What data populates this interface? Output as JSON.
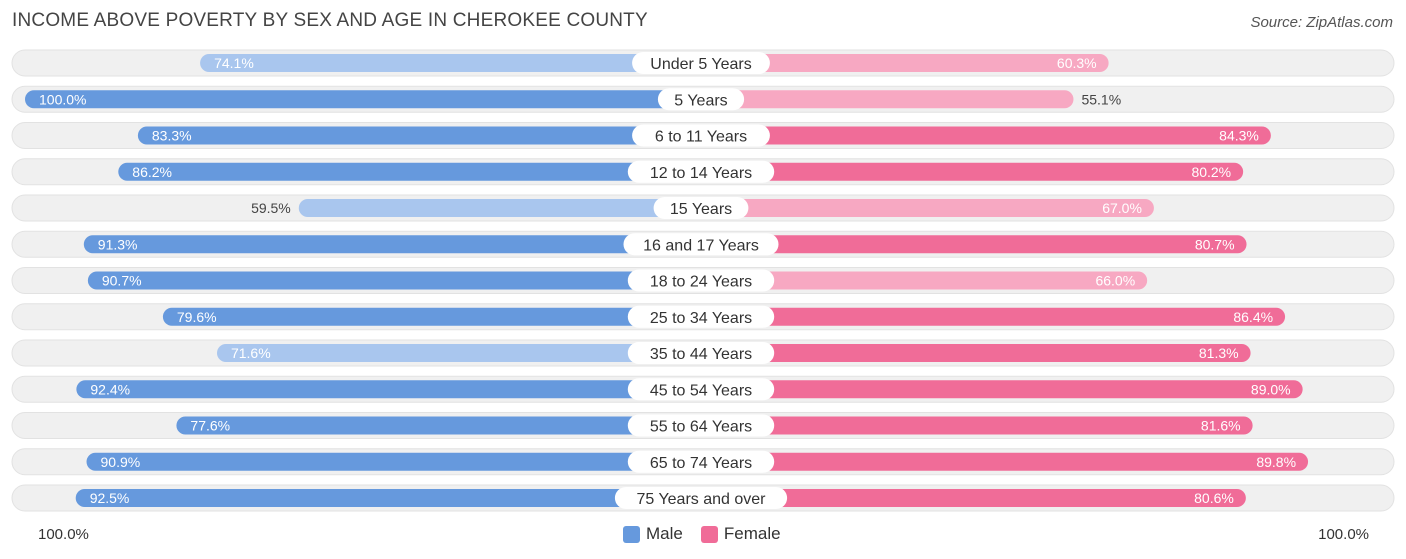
{
  "title": "INCOME ABOVE POVERTY BY SEX AND AGE IN CHEROKEE COUNTY",
  "source": "Source: ZipAtlas.com",
  "colors": {
    "male_strong": "#6699dd",
    "male_light": "#a9c6ee",
    "female_strong": "#f06c98",
    "female_light": "#f7a8c2",
    "row_bg": "#f0f0f0"
  },
  "legend": {
    "male": "Male",
    "female": "Female"
  },
  "axis": {
    "left_label": "100.0%",
    "right_label": "100.0%"
  },
  "chart_data": {
    "type": "bar",
    "orientation": "horizontal-diverging",
    "title": "INCOME ABOVE POVERTY BY SEX AND AGE IN CHEROKEE COUNTY",
    "xlim": [
      0,
      100
    ],
    "categories": [
      "Under 5 Years",
      "5 Years",
      "6 to 11 Years",
      "12 to 14 Years",
      "15 Years",
      "16 and 17 Years",
      "18 to 24 Years",
      "25 to 34 Years",
      "35 to 44 Years",
      "45 to 54 Years",
      "55 to 64 Years",
      "65 to 74 Years",
      "75 Years and over"
    ],
    "series": [
      {
        "name": "Male",
        "values": [
          74.1,
          100.0,
          83.3,
          86.2,
          59.5,
          91.3,
          90.7,
          79.6,
          71.6,
          92.4,
          77.6,
          90.9,
          92.5
        ],
        "labels": [
          "74.1%",
          "100.0%",
          "83.3%",
          "86.2%",
          "59.5%",
          "91.3%",
          "90.7%",
          "79.6%",
          "71.6%",
          "92.4%",
          "77.6%",
          "90.9%",
          "92.5%"
        ]
      },
      {
        "name": "Female",
        "values": [
          60.3,
          55.1,
          84.3,
          80.2,
          67.0,
          80.7,
          66.0,
          86.4,
          81.3,
          89.0,
          81.6,
          89.8,
          80.6
        ],
        "labels": [
          "60.3%",
          "55.1%",
          "84.3%",
          "80.2%",
          "67.0%",
          "80.7%",
          "66.0%",
          "86.4%",
          "81.3%",
          "89.0%",
          "81.6%",
          "89.8%",
          "80.6%"
        ]
      }
    ]
  }
}
